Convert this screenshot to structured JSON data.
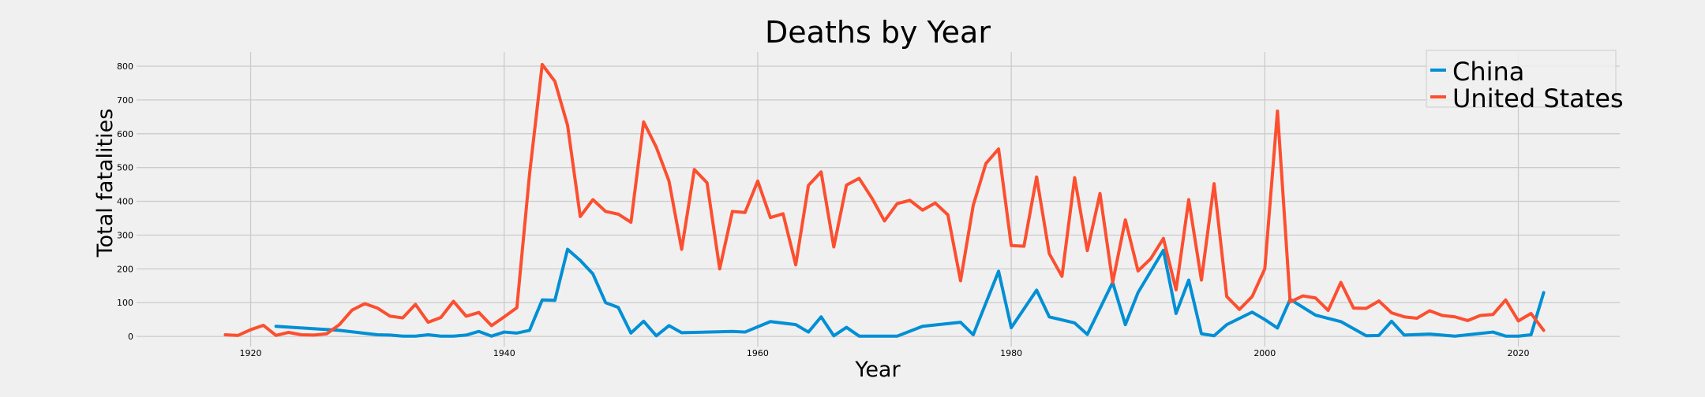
{
  "chart_data": {
    "type": "line",
    "title": "Deaths by Year",
    "xlabel": "Year",
    "ylabel": "Total fatalities",
    "xlim": [
      1911,
      2028
    ],
    "ylim": [
      -30,
      842
    ],
    "xticks": [
      1920,
      1940,
      1960,
      1980,
      2000,
      2020
    ],
    "yticks": [
      0,
      100,
      200,
      300,
      400,
      500,
      600,
      700,
      800
    ],
    "grid": true,
    "legend": "top-right",
    "series": [
      {
        "name": "China",
        "color": "#008fd5",
        "points": [
          [
            1922,
            30
          ],
          [
            1927,
            18
          ],
          [
            1930,
            5
          ],
          [
            1931,
            4
          ],
          [
            1932,
            1
          ],
          [
            1933,
            1
          ],
          [
            1934,
            5
          ],
          [
            1935,
            1
          ],
          [
            1936,
            1
          ],
          [
            1937,
            4
          ],
          [
            1938,
            15
          ],
          [
            1939,
            1
          ],
          [
            1940,
            13
          ],
          [
            1941,
            10
          ],
          [
            1942,
            18
          ],
          [
            1943,
            108
          ],
          [
            1944,
            107
          ],
          [
            1945,
            258
          ],
          [
            1946,
            225
          ],
          [
            1947,
            185
          ],
          [
            1948,
            100
          ],
          [
            1949,
            86
          ],
          [
            1950,
            10
          ],
          [
            1951,
            45
          ],
          [
            1952,
            2
          ],
          [
            1953,
            32
          ],
          [
            1954,
            11
          ],
          [
            1958,
            15
          ],
          [
            1959,
            13
          ],
          [
            1961,
            44
          ],
          [
            1963,
            35
          ],
          [
            1964,
            13
          ],
          [
            1965,
            58
          ],
          [
            1966,
            2
          ],
          [
            1967,
            27
          ],
          [
            1968,
            1
          ],
          [
            1971,
            1
          ],
          [
            1973,
            30
          ],
          [
            1976,
            42
          ],
          [
            1977,
            5
          ],
          [
            1979,
            193
          ],
          [
            1980,
            26
          ],
          [
            1982,
            137
          ],
          [
            1983,
            58
          ],
          [
            1985,
            40
          ],
          [
            1986,
            6
          ],
          [
            1988,
            160
          ],
          [
            1989,
            35
          ],
          [
            1990,
            130
          ],
          [
            1992,
            255
          ],
          [
            1993,
            68
          ],
          [
            1994,
            167
          ],
          [
            1995,
            8
          ],
          [
            1996,
            2
          ],
          [
            1997,
            35
          ],
          [
            1999,
            72
          ],
          [
            2000,
            50
          ],
          [
            2001,
            25
          ],
          [
            2002,
            110
          ],
          [
            2004,
            63
          ],
          [
            2006,
            44
          ],
          [
            2008,
            2
          ],
          [
            2009,
            3
          ],
          [
            2010,
            45
          ],
          [
            2011,
            4
          ],
          [
            2013,
            7
          ],
          [
            2015,
            1
          ],
          [
            2018,
            13
          ],
          [
            2019,
            1
          ],
          [
            2020,
            1
          ],
          [
            2021,
            5
          ],
          [
            2022,
            130
          ]
        ]
      },
      {
        "name": "United States",
        "color": "#fc4f30",
        "points": [
          [
            1918,
            5
          ],
          [
            1919,
            3
          ],
          [
            1920,
            20
          ],
          [
            1921,
            33
          ],
          [
            1922,
            3
          ],
          [
            1923,
            12
          ],
          [
            1924,
            5
          ],
          [
            1925,
            4
          ],
          [
            1926,
            8
          ],
          [
            1927,
            35
          ],
          [
            1928,
            78
          ],
          [
            1929,
            97
          ],
          [
            1930,
            84
          ],
          [
            1931,
            60
          ],
          [
            1932,
            55
          ],
          [
            1933,
            95
          ],
          [
            1934,
            42
          ],
          [
            1935,
            56
          ],
          [
            1936,
            104
          ],
          [
            1937,
            60
          ],
          [
            1938,
            71
          ],
          [
            1939,
            32
          ],
          [
            1940,
            58
          ],
          [
            1941,
            85
          ],
          [
            1942,
            480
          ],
          [
            1943,
            805
          ],
          [
            1944,
            755
          ],
          [
            1945,
            625
          ],
          [
            1946,
            355
          ],
          [
            1947,
            405
          ],
          [
            1948,
            370
          ],
          [
            1949,
            362
          ],
          [
            1950,
            338
          ],
          [
            1951,
            635
          ],
          [
            1952,
            560
          ],
          [
            1953,
            460
          ],
          [
            1954,
            258
          ],
          [
            1955,
            494
          ],
          [
            1956,
            455
          ],
          [
            1957,
            200
          ],
          [
            1958,
            370
          ],
          [
            1959,
            367
          ],
          [
            1960,
            460
          ],
          [
            1961,
            352
          ],
          [
            1962,
            363
          ],
          [
            1963,
            212
          ],
          [
            1964,
            447
          ],
          [
            1965,
            487
          ],
          [
            1966,
            265
          ],
          [
            1967,
            448
          ],
          [
            1968,
            468
          ],
          [
            1969,
            410
          ],
          [
            1970,
            342
          ],
          [
            1971,
            393
          ],
          [
            1972,
            403
          ],
          [
            1973,
            374
          ],
          [
            1974,
            395
          ],
          [
            1975,
            360
          ],
          [
            1976,
            165
          ],
          [
            1977,
            388
          ],
          [
            1978,
            512
          ],
          [
            1979,
            555
          ],
          [
            1980,
            269
          ],
          [
            1981,
            267
          ],
          [
            1982,
            472
          ],
          [
            1983,
            245
          ],
          [
            1984,
            178
          ],
          [
            1985,
            470
          ],
          [
            1986,
            254
          ],
          [
            1987,
            423
          ],
          [
            1988,
            160
          ],
          [
            1989,
            345
          ],
          [
            1990,
            194
          ],
          [
            1991,
            230
          ],
          [
            1992,
            290
          ],
          [
            1993,
            138
          ],
          [
            1994,
            405
          ],
          [
            1995,
            167
          ],
          [
            1996,
            452
          ],
          [
            1997,
            118
          ],
          [
            1998,
            80
          ],
          [
            1999,
            118
          ],
          [
            2000,
            200
          ],
          [
            2001,
            667
          ],
          [
            2002,
            102
          ],
          [
            2003,
            120
          ],
          [
            2004,
            114
          ],
          [
            2005,
            77
          ],
          [
            2006,
            160
          ],
          [
            2007,
            84
          ],
          [
            2008,
            83
          ],
          [
            2009,
            105
          ],
          [
            2010,
            70
          ],
          [
            2011,
            58
          ],
          [
            2012,
            54
          ],
          [
            2013,
            76
          ],
          [
            2014,
            62
          ],
          [
            2015,
            58
          ],
          [
            2016,
            47
          ],
          [
            2017,
            62
          ],
          [
            2018,
            65
          ],
          [
            2019,
            108
          ],
          [
            2020,
            46
          ],
          [
            2021,
            68
          ],
          [
            2022,
            18
          ]
        ]
      }
    ]
  }
}
